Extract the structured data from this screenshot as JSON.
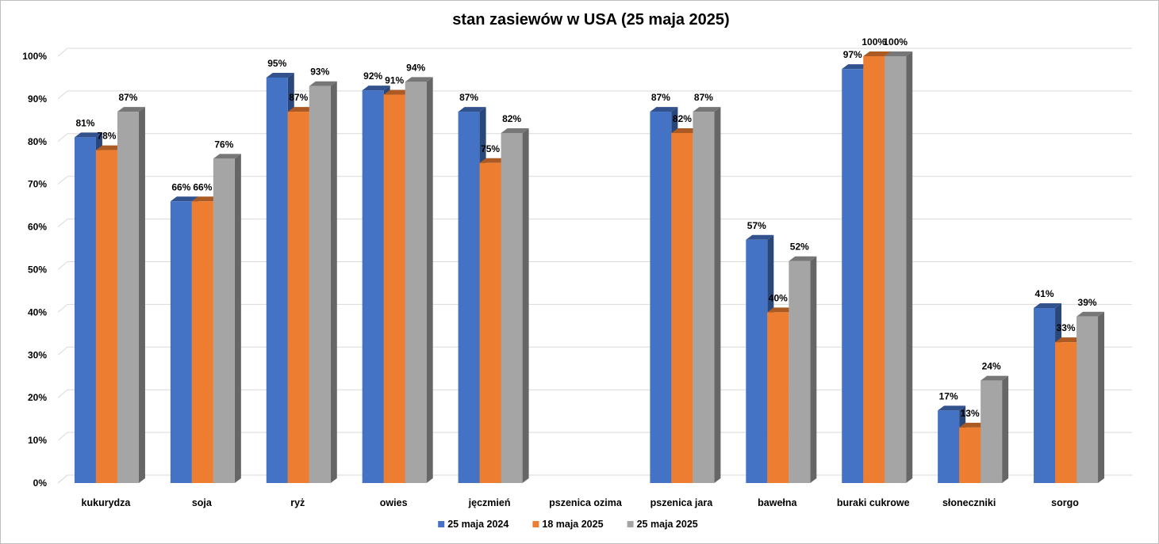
{
  "chart_data": {
    "type": "bar",
    "title": "stan zasiewów w USA (25 maja 2025)",
    "xlabel": "",
    "ylabel": "",
    "ylim": [
      0,
      100
    ],
    "y_ticks": [
      "0%",
      "10%",
      "20%",
      "30%",
      "40%",
      "50%",
      "60%",
      "70%",
      "80%",
      "90%",
      "100%"
    ],
    "grid": true,
    "legend_position": "bottom",
    "categories": [
      "kukurydza",
      "soja",
      "ryż",
      "owies",
      "jęczmień",
      "pszenica ozima",
      "pszenica jara",
      "bawełna",
      "buraki cukrowe",
      "słoneczniki",
      "sorgo"
    ],
    "series": [
      {
        "name": "25 maja 2024",
        "color": "#4472c4",
        "values": [
          81,
          66,
          95,
          92,
          87,
          null,
          87,
          57,
          97,
          17,
          41
        ],
        "labels": [
          "81%",
          "66%",
          "95%",
          "92%",
          "87%",
          "",
          "87%",
          "57%",
          "97%",
          "17%",
          "41%"
        ]
      },
      {
        "name": "18 maja 2025",
        "color": "#ed7d31",
        "values": [
          78,
          66,
          87,
          91,
          75,
          null,
          82,
          40,
          100,
          13,
          33
        ],
        "labels": [
          "78%",
          "66%",
          "87%",
          "91%",
          "75%",
          "",
          "82%",
          "40%",
          "100%",
          "13%",
          "33%"
        ]
      },
      {
        "name": "25 maja 2025",
        "color": "#a5a5a5",
        "values": [
          87,
          76,
          93,
          94,
          82,
          null,
          87,
          52,
          100,
          24,
          39
        ],
        "labels": [
          "87%",
          "76%",
          "93%",
          "94%",
          "82%",
          "",
          "87%",
          "52%",
          "100%",
          "24%",
          "39%"
        ]
      }
    ]
  }
}
